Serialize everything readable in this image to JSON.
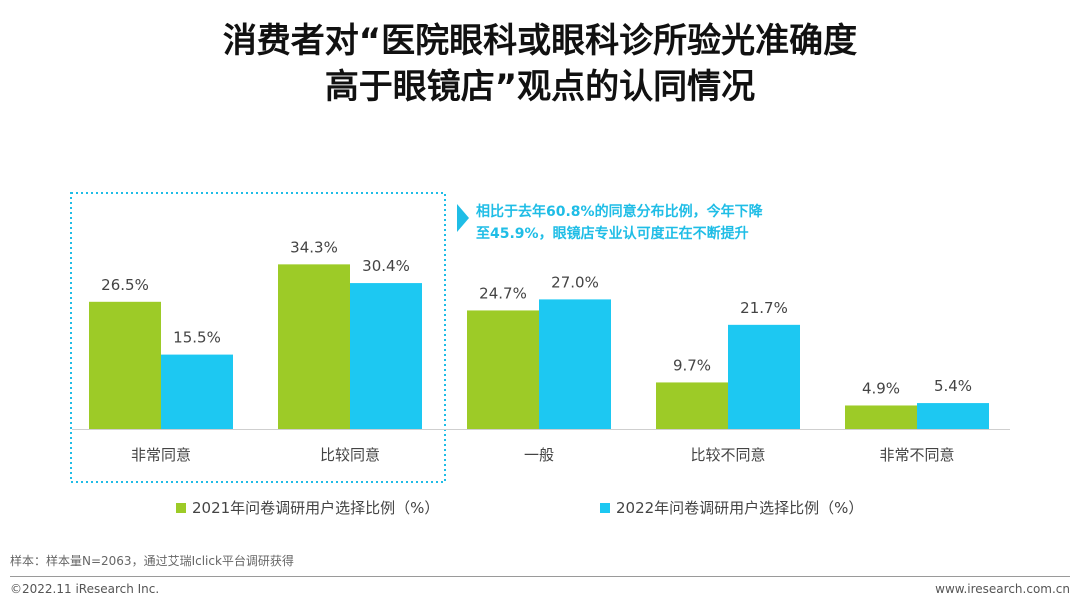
{
  "title": {
    "line1": "消费者对“医院眼科或眼科诊所验光准确度",
    "line2": "高于眼镜店”观点的认同情况"
  },
  "callout": {
    "line1": "相比于去年60.8%的同意分布比例，今年下降",
    "line2": "至45.9%，眼镜店专业认可度正在不断提升",
    "color": "#1fbde6"
  },
  "note": "样本：样本量N=2063，通过艾瑞Iclick平台调研获得",
  "footer": {
    "copyright": "©2022.11 iResearch Inc.",
    "site": "www.iresearch.com.cn"
  },
  "chart_data": {
    "type": "bar",
    "categories": [
      "非常同意",
      "比较同意",
      "一般",
      "比较不同意",
      "非常不同意"
    ],
    "series": [
      {
        "name": "2021年问卷调研用户选择比例（%）",
        "values": [
          26.5,
          34.3,
          24.7,
          9.7,
          4.9
        ],
        "labels": [
          "26.5%",
          "34.3%",
          "24.7%",
          "9.7%",
          "4.9%"
        ],
        "color": "#9dcb27"
      },
      {
        "name": "2022年问卷调研用户选择比例（%）",
        "values": [
          15.5,
          30.4,
          27.0,
          21.7,
          5.4
        ],
        "labels": [
          "15.5%",
          "30.4%",
          "27.0%",
          "21.7%",
          "5.4%"
        ],
        "color": "#1dc8f2"
      }
    ],
    "ylim": [
      0,
      40
    ],
    "grid": false,
    "legend": "bottom",
    "highlight_categories": [
      "非常同意",
      "比较同意"
    ]
  }
}
